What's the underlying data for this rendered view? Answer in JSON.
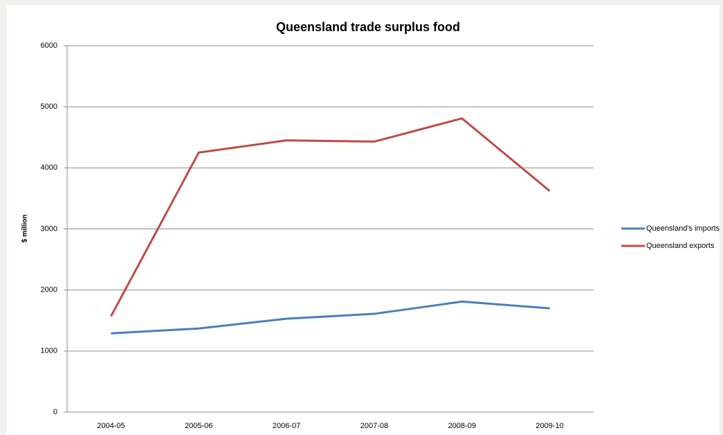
{
  "chart_data": {
    "type": "line",
    "title": "Queensland trade surplus food",
    "y_label": "$ million",
    "categories": [
      "2004-05",
      "2005-06",
      "2006-07",
      "2007-08",
      "2008-09",
      "2009-10"
    ],
    "series": [
      {
        "name": "Queensland's imports",
        "color": "#4a7ebb",
        "values": [
          1290,
          1370,
          1530,
          1610,
          1810,
          1700
        ]
      },
      {
        "name": "Queensland exports",
        "color": "#be4b48",
        "values": [
          1570,
          4250,
          4450,
          4430,
          4810,
          3620
        ]
      }
    ],
    "ylim": [
      0,
      6000
    ],
    "yticks": [
      0,
      1000,
      2000,
      3000,
      4000,
      5000,
      6000
    ],
    "grid": true,
    "legend": "right"
  }
}
